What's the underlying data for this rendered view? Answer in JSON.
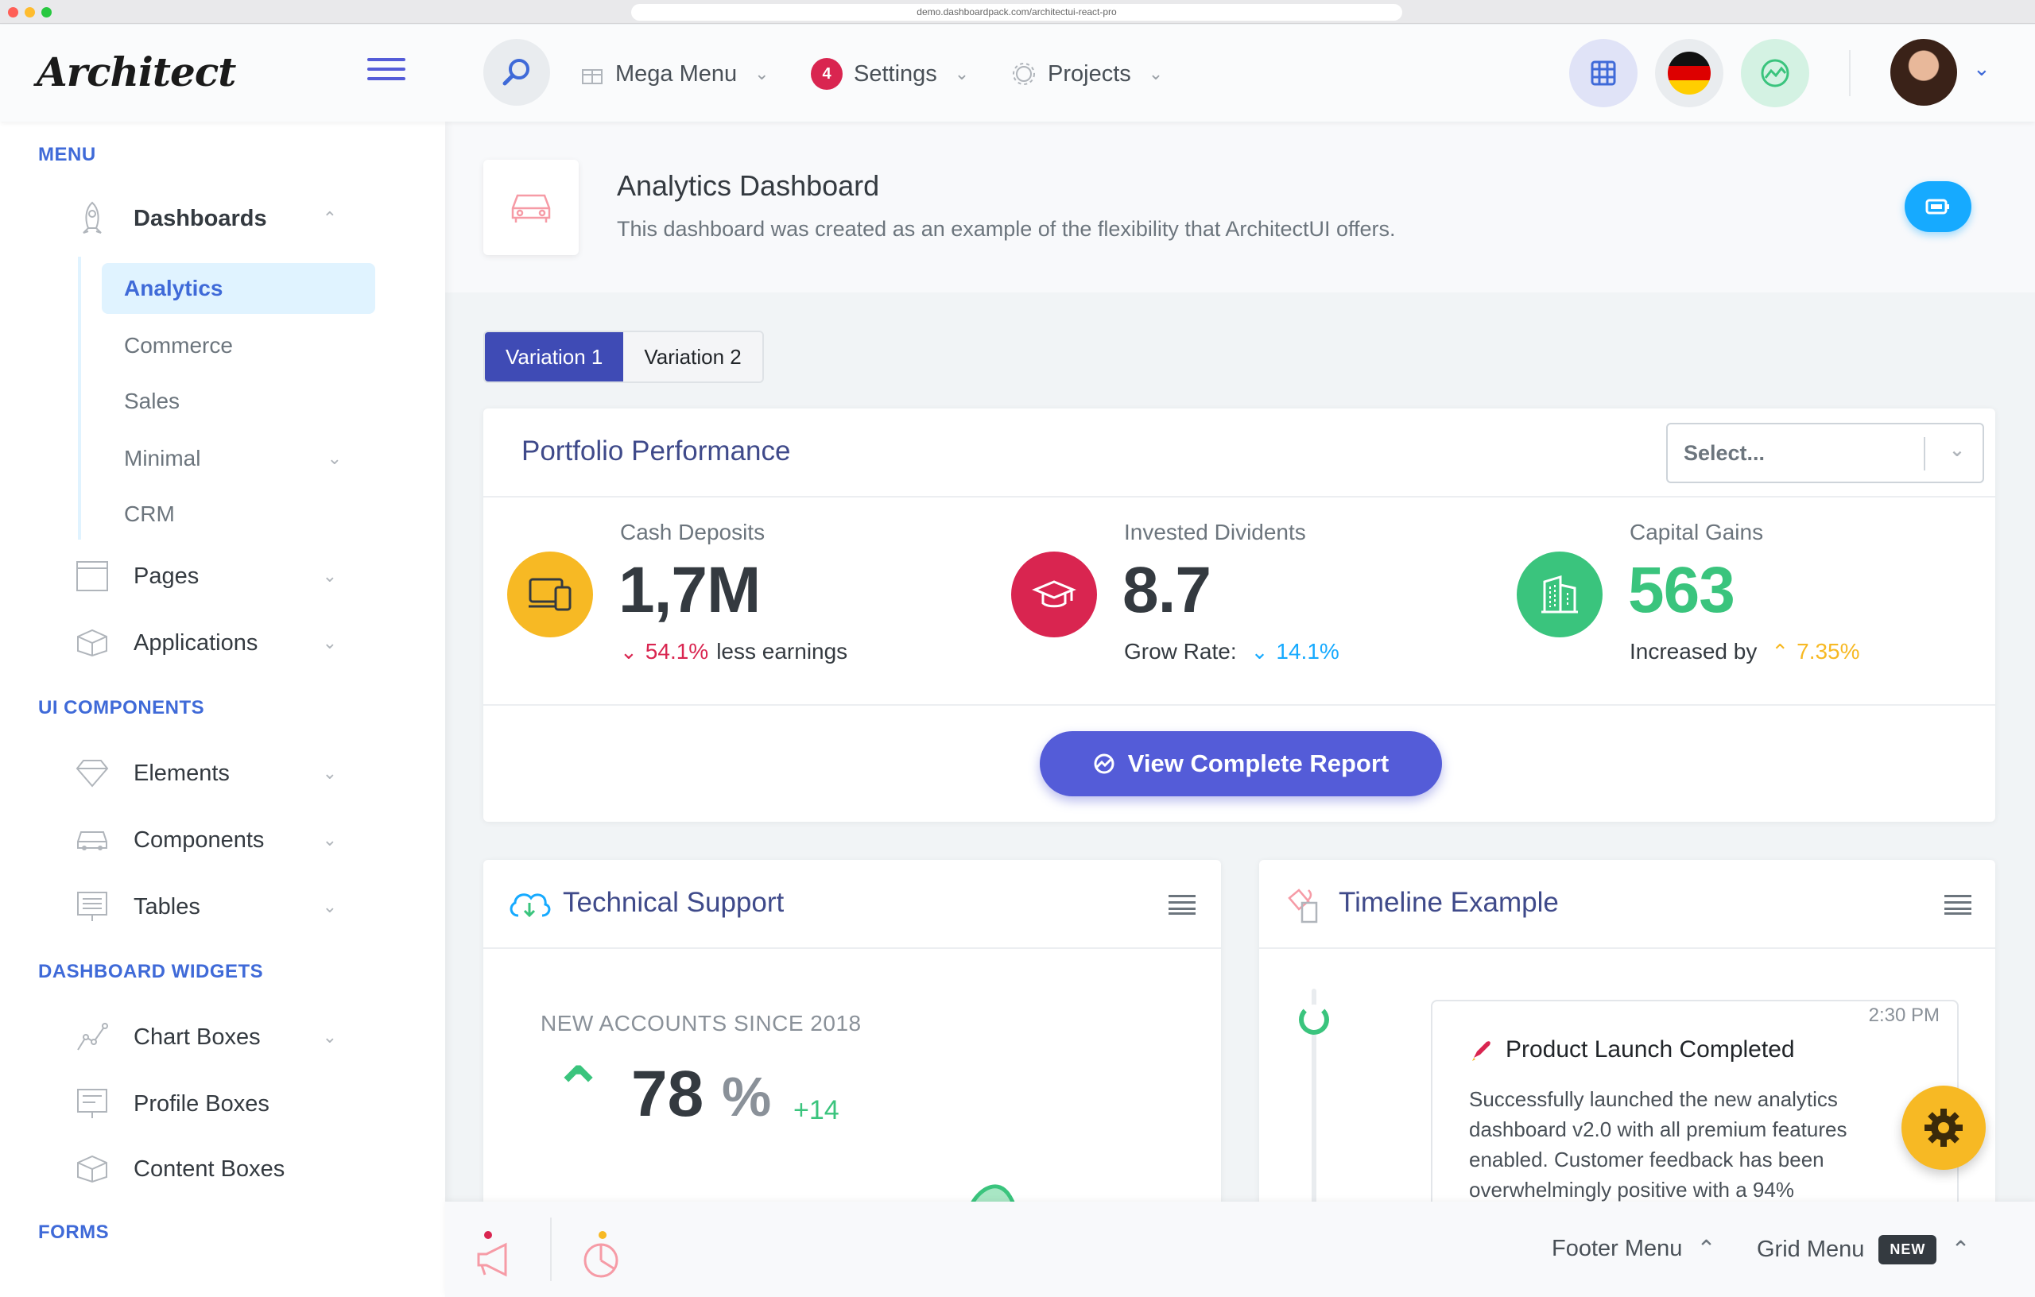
{
  "browser": {
    "url": "demo.dashboardpack.com/architectui-react-pro"
  },
  "header": {
    "logo": "Architect",
    "nav": {
      "mega_menu": "Mega Menu",
      "settings": "Settings",
      "settings_badge": "4",
      "projects": "Projects"
    }
  },
  "sidebar": {
    "sections": {
      "menu": "MENU",
      "ui_components": "UI COMPONENTS",
      "dashboard_widgets": "DASHBOARD WIDGETS",
      "forms": "FORMS"
    },
    "dashboards": "Dashboards",
    "sub": {
      "analytics": "Analytics",
      "commerce": "Commerce",
      "sales": "Sales",
      "minimal": "Minimal",
      "crm": "CRM"
    },
    "pages": "Pages",
    "applications": "Applications",
    "elements": "Elements",
    "components": "Components",
    "tables": "Tables",
    "chart_boxes": "Chart Boxes",
    "profile_boxes": "Profile Boxes",
    "content_boxes": "Content Boxes"
  },
  "page_title": {
    "title": "Analytics Dashboard",
    "subtitle": "This dashboard was created as an example of the flexibility that ArchitectUI offers."
  },
  "tabs": {
    "v1": "Variation 1",
    "v2": "Variation 2"
  },
  "portfolio": {
    "title": "Portfolio Performance",
    "select_placeholder": "Select...",
    "cash": {
      "label": "Cash Deposits",
      "value": "1,7M",
      "delta": "54.1%",
      "delta_text": "less earnings"
    },
    "dividends": {
      "label": "Invested Dividents",
      "value": "8.7",
      "prefix": "Grow Rate:",
      "delta": "14.1%"
    },
    "gains": {
      "label": "Capital Gains",
      "value": "563",
      "prefix": "Increased by",
      "delta": "7.35%"
    },
    "button": "View Complete Report"
  },
  "support": {
    "title": "Technical Support",
    "caption": "NEW ACCOUNTS SINCE 2018",
    "value": "78",
    "unit": "%",
    "delta": "+14"
  },
  "timeline": {
    "title": "Timeline Example",
    "time": "2:30 PM",
    "event_title": "Product Launch Completed",
    "event_body": "Successfully launched the new analytics dashboard v2.0 with all premium features enabled. Customer feedback has been overwhelmingly positive with a 94%"
  },
  "footer": {
    "footer_menu": "Footer Menu",
    "grid_menu": "Grid Menu",
    "badge": "NEW"
  },
  "colors": {
    "primary": "#545cd8",
    "warning": "#f7b924",
    "danger": "#d92550",
    "success": "#3ac47d",
    "info": "#16aaff"
  }
}
